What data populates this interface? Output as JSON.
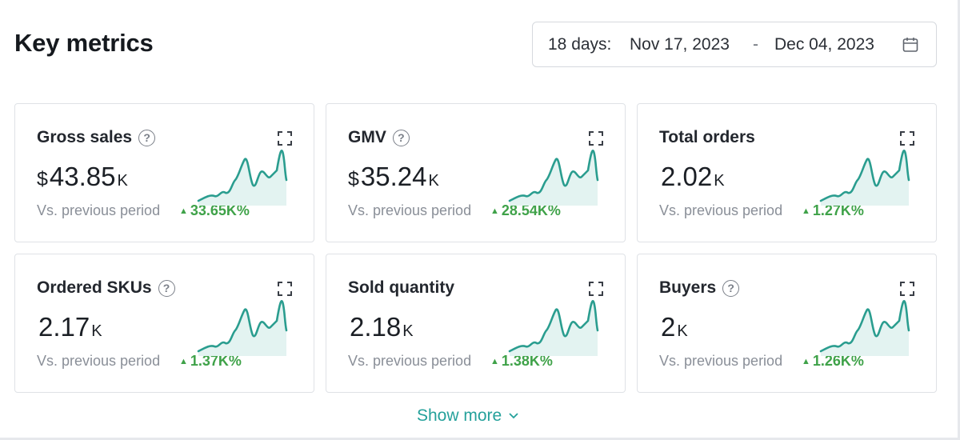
{
  "header": {
    "title": "Key metrics",
    "date_range": {
      "days": "18 days:",
      "start": "Nov 17, 2023",
      "separator": "-",
      "end": "Dec 04, 2023"
    }
  },
  "colors": {
    "accent": "#25a19b",
    "positive": "#3fa249",
    "sparkline": "#2a9d8f",
    "sparkline_fill": "#e3f3f1"
  },
  "icons": {
    "help": "question-circle-icon",
    "expand": "expand-icon",
    "calendar": "calendar-icon",
    "trend_up": "arrow-up-icon",
    "chevron": "chevron-down-icon"
  },
  "metrics": [
    {
      "label": "Gross sales",
      "currency": "$",
      "value": "43.85",
      "unit": "K",
      "compare_label": "Vs. previous period",
      "delta": "33.65K%"
    },
    {
      "label": "GMV",
      "currency": "$",
      "value": "35.24",
      "unit": "K",
      "compare_label": "Vs. previous period",
      "delta": "28.54K%"
    },
    {
      "label": "Total orders",
      "currency": "",
      "value": "2.02",
      "unit": "K",
      "compare_label": "Vs. previous period",
      "delta": "1.27K%"
    },
    {
      "label": "Ordered SKUs",
      "currency": "",
      "value": "2.17",
      "unit": "K",
      "compare_label": "Vs. previous period",
      "delta": "1.37K%"
    },
    {
      "label": "Sold quantity",
      "currency": "",
      "value": "2.18",
      "unit": "K",
      "compare_label": "Vs. previous period",
      "delta": "1.38K%"
    },
    {
      "label": "Buyers",
      "currency": "",
      "value": "2",
      "unit": "K",
      "compare_label": "Vs. previous period",
      "delta": "1.26K%"
    }
  ],
  "footer": {
    "show_more_label": "Show more"
  }
}
